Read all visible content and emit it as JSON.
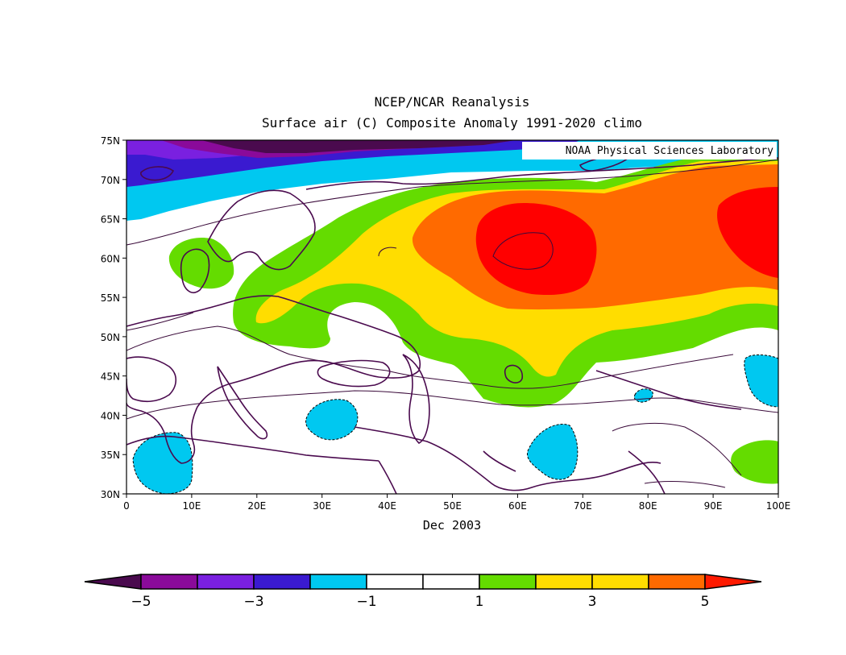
{
  "title": "NCEP/NCAR Reanalysis",
  "subtitle": "Surface air (C) Composite Anomaly 1991-2020 climo",
  "credit": "NOAA Physical Sciences Laboratory",
  "period": "Dec 2003",
  "lat_labels": [
    "75N",
    "70N",
    "65N",
    "60N",
    "55N",
    "50N",
    "45N",
    "40N",
    "35N",
    "30N"
  ],
  "lon_labels": [
    "0",
    "10E",
    "20E",
    "30E",
    "40E",
    "50E",
    "60E",
    "70E",
    "80E",
    "90E",
    "100E"
  ],
  "colorbar": {
    "labels": [
      "-5",
      "-3",
      "-1",
      "1",
      "3",
      "5"
    ],
    "colors": [
      "#4a0a4e",
      "#8a0a9a",
      "#7a20e0",
      "#3a1ad0",
      "#00c8f0",
      "#ffffff",
      "#ffffff",
      "#64dc00",
      "#ffdd00",
      "#ffdd00",
      "#ff6a00",
      "#ff1a00"
    ]
  },
  "colors": {
    "land_outline": "#4a0a4e",
    "contour_line": "#3a0a3a",
    "cyan": "#00c8f0",
    "green": "#64dc00",
    "yellow": "#ffdd00",
    "orange": "#ff6a00",
    "red": "#ff0000",
    "violet": "#7a20e0",
    "blue": "#3a1ad0",
    "dark_purple": "#4a0a4e"
  }
}
